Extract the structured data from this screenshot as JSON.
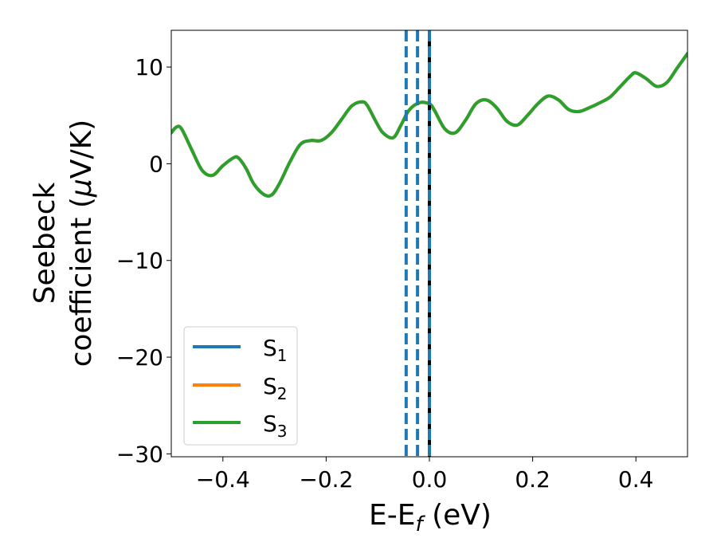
{
  "chart_data": {
    "type": "line",
    "title": "",
    "xlabel": "E-E",
    "xlabel_sub": "f",
    "xlabel_unit": " (eV)",
    "ylabel_line1": "Seebeck",
    "ylabel_line2": "coefficient  (",
    "ylabel_mu": "μ",
    "ylabel_unit": "V/K)",
    "xlim": [
      -0.5,
      0.5
    ],
    "ylim": [
      -30.3,
      13.8
    ],
    "xticks": [
      -0.4,
      -0.2,
      0.0,
      0.2,
      0.4
    ],
    "xtick_labels": [
      "−0.4",
      "−0.2",
      "0.0",
      "0.2",
      "0.4"
    ],
    "yticks": [
      -30,
      -20,
      -10,
      0,
      10
    ],
    "ytick_labels": [
      "−30",
      "−20",
      "−10",
      "0",
      "10"
    ],
    "grid": false,
    "legend_position": "lower-left",
    "series": [
      {
        "name": "S",
        "sub": "1",
        "color": "#1f77b4",
        "x": [
          -0.5,
          -0.49,
          -0.48,
          -0.46,
          -0.44,
          -0.42,
          -0.4,
          -0.38,
          -0.37,
          -0.355,
          -0.34,
          -0.32,
          -0.305,
          -0.29,
          -0.27,
          -0.25,
          -0.23,
          -0.21,
          -0.19,
          -0.17,
          -0.15,
          -0.13,
          -0.12,
          -0.105,
          -0.09,
          -0.07,
          -0.055,
          -0.04,
          -0.02,
          0.0,
          0.01,
          0.03,
          0.05,
          0.07,
          0.09,
          0.11,
          0.13,
          0.15,
          0.17,
          0.19,
          0.21,
          0.23,
          0.25,
          0.27,
          0.29,
          0.31,
          0.33,
          0.35,
          0.37,
          0.39,
          0.4,
          0.42,
          0.44,
          0.46,
          0.48,
          0.5
        ],
        "y": [
          3.2,
          3.8,
          3.6,
          1.4,
          -0.7,
          -1.2,
          -0.2,
          0.6,
          0.6,
          -0.5,
          -2.1,
          -3.2,
          -3.2,
          -2.0,
          0.2,
          2.0,
          2.4,
          2.4,
          3.2,
          4.6,
          6.0,
          6.4,
          6.0,
          4.5,
          3.2,
          2.7,
          4.0,
          5.5,
          6.3,
          6.2,
          5.5,
          3.6,
          3.2,
          4.5,
          6.2,
          6.6,
          5.8,
          4.4,
          4.0,
          5.0,
          6.2,
          7.0,
          6.6,
          5.6,
          5.4,
          5.8,
          6.3,
          6.9,
          8.0,
          9.1,
          9.4,
          8.8,
          8.0,
          8.4,
          9.9,
          11.4
        ]
      },
      {
        "name": "S",
        "sub": "2",
        "color": "#ff7f0e",
        "x": [
          -0.5,
          -0.49,
          -0.48,
          -0.46,
          -0.44,
          -0.42,
          -0.4,
          -0.38,
          -0.37,
          -0.355,
          -0.34,
          -0.32,
          -0.305,
          -0.29,
          -0.27,
          -0.25,
          -0.23,
          -0.21,
          -0.19,
          -0.17,
          -0.15,
          -0.13,
          -0.12,
          -0.105,
          -0.09,
          -0.07,
          -0.055,
          -0.04,
          -0.02,
          0.0,
          0.01,
          0.03,
          0.05,
          0.07,
          0.09,
          0.11,
          0.13,
          0.15,
          0.17,
          0.19,
          0.21,
          0.23,
          0.25,
          0.27,
          0.29,
          0.31,
          0.33,
          0.35,
          0.37,
          0.39,
          0.4,
          0.42,
          0.44,
          0.46,
          0.48,
          0.5
        ],
        "y": [
          3.2,
          3.8,
          3.6,
          1.4,
          -0.7,
          -1.2,
          -0.2,
          0.6,
          0.6,
          -0.5,
          -2.1,
          -3.2,
          -3.2,
          -2.0,
          0.2,
          2.0,
          2.4,
          2.4,
          3.2,
          4.6,
          6.0,
          6.4,
          6.0,
          4.5,
          3.2,
          2.7,
          4.0,
          5.5,
          6.3,
          6.2,
          5.5,
          3.6,
          3.2,
          4.5,
          6.2,
          6.6,
          5.8,
          4.4,
          4.0,
          5.0,
          6.2,
          7.0,
          6.6,
          5.6,
          5.4,
          5.8,
          6.3,
          6.9,
          8.0,
          9.1,
          9.4,
          8.8,
          8.0,
          8.4,
          9.9,
          11.4
        ]
      },
      {
        "name": "S",
        "sub": "3",
        "color": "#2ca02c",
        "x": [
          -0.5,
          -0.49,
          -0.48,
          -0.46,
          -0.44,
          -0.42,
          -0.4,
          -0.38,
          -0.37,
          -0.355,
          -0.34,
          -0.32,
          -0.305,
          -0.29,
          -0.27,
          -0.25,
          -0.23,
          -0.21,
          -0.19,
          -0.17,
          -0.15,
          -0.13,
          -0.12,
          -0.105,
          -0.09,
          -0.07,
          -0.055,
          -0.04,
          -0.02,
          0.0,
          0.01,
          0.03,
          0.05,
          0.07,
          0.09,
          0.11,
          0.13,
          0.15,
          0.17,
          0.19,
          0.21,
          0.23,
          0.25,
          0.27,
          0.29,
          0.31,
          0.33,
          0.35,
          0.37,
          0.39,
          0.4,
          0.42,
          0.44,
          0.46,
          0.48,
          0.5
        ],
        "y": [
          3.2,
          3.8,
          3.6,
          1.4,
          -0.7,
          -1.2,
          -0.2,
          0.6,
          0.6,
          -0.5,
          -2.1,
          -3.2,
          -3.2,
          -2.0,
          0.2,
          2.0,
          2.4,
          2.4,
          3.2,
          4.6,
          6.0,
          6.4,
          6.0,
          4.5,
          3.2,
          2.7,
          4.0,
          5.5,
          6.3,
          6.2,
          5.5,
          3.6,
          3.2,
          4.5,
          6.2,
          6.6,
          5.8,
          4.4,
          4.0,
          5.0,
          6.2,
          7.0,
          6.6,
          5.6,
          5.4,
          5.8,
          6.3,
          6.9,
          8.0,
          9.1,
          9.4,
          8.8,
          8.0,
          8.4,
          9.9,
          11.4
        ]
      }
    ],
    "vlines": [
      {
        "x": -0.045,
        "color": "#1f77b4",
        "style": "dashed"
      },
      {
        "x": -0.023,
        "color": "#1f77b4",
        "style": "dashed"
      },
      {
        "x": 0.0,
        "color": "#000000",
        "style": "solid"
      },
      {
        "x": 0.0,
        "color": "#1f77b4",
        "style": "dashed"
      }
    ]
  }
}
